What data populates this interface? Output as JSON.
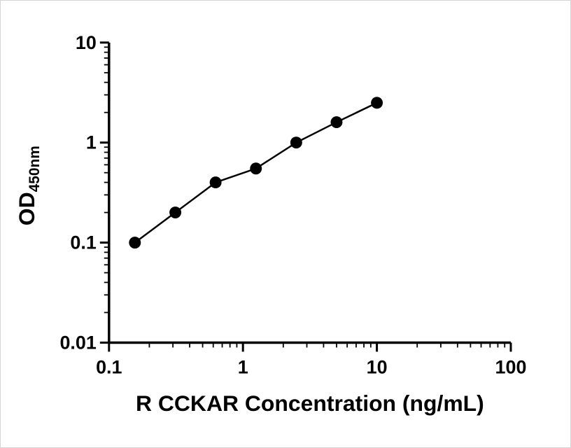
{
  "figure": {
    "background_color": "#ffffff",
    "border_color": "#d4d4d4",
    "ink_color": "#000000"
  },
  "chart_data": {
    "type": "scatter",
    "title": "",
    "xlabel": "R CCKAR Concentration (ng/mL)",
    "ylabel_main": "OD",
    "ylabel_sub": "450nm",
    "x_scale": "log",
    "y_scale": "log",
    "xlim": [
      0.1,
      100
    ],
    "ylim": [
      0.01,
      10
    ],
    "x_tick_values": [
      0.1,
      1,
      10,
      100
    ],
    "x_tick_labels": [
      "0.1",
      "1",
      "10",
      "100"
    ],
    "y_tick_values": [
      0.01,
      0.1,
      1,
      10
    ],
    "y_tick_labels": [
      "0.01",
      "0.1",
      "1",
      "10"
    ],
    "minor_ticks": true,
    "grid": false,
    "legend": "none",
    "x": [
      0.156,
      0.313,
      0.625,
      1.25,
      2.5,
      5,
      10
    ],
    "y": [
      0.1,
      0.2,
      0.4,
      0.55,
      1.0,
      1.6,
      2.5
    ],
    "marker_color": "#000000",
    "line_color": "#000000",
    "connect_points_with_line": true
  }
}
